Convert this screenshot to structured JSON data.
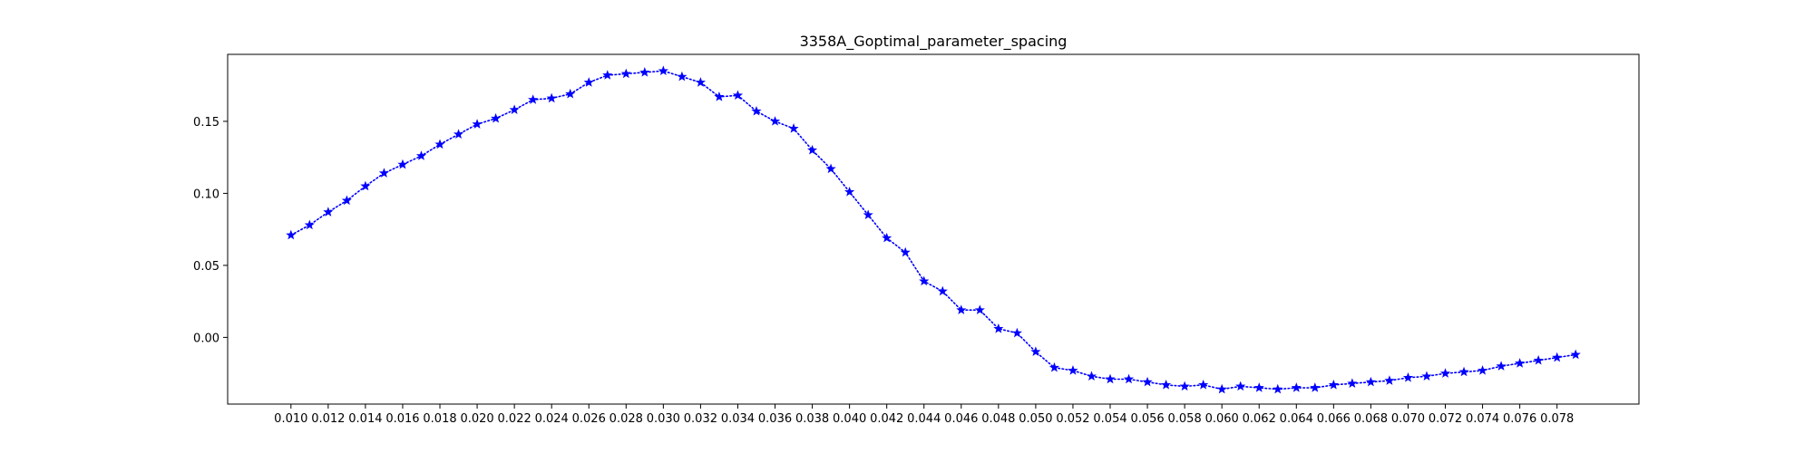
{
  "chart_data": {
    "type": "line",
    "title": "3358A_Goptimal_parameter_spacing",
    "xlabel": "",
    "ylabel": "",
    "grid": false,
    "legend": "none",
    "xlim": [
      0.0066,
      0.0824
    ],
    "ylim": [
      -0.0463,
      0.1965
    ],
    "x_ticks": [
      "0.010",
      "0.012",
      "0.014",
      "0.016",
      "0.018",
      "0.020",
      "0.022",
      "0.024",
      "0.026",
      "0.028",
      "0.030",
      "0.032",
      "0.034",
      "0.036",
      "0.038",
      "0.040",
      "0.042",
      "0.044",
      "0.046",
      "0.048",
      "0.050",
      "0.052",
      "0.054",
      "0.056",
      "0.058",
      "0.060",
      "0.062",
      "0.064",
      "0.066",
      "0.068",
      "0.070",
      "0.072",
      "0.074",
      "0.076",
      "0.078"
    ],
    "y_ticks": [
      "0.00",
      "0.05",
      "0.10",
      "0.15"
    ],
    "series": [
      {
        "color": "#0000ff",
        "line_style": "dotted",
        "marker": "star",
        "x": [
          0.01,
          0.011,
          0.012,
          0.013,
          0.014,
          0.015,
          0.016,
          0.017,
          0.018,
          0.019,
          0.02,
          0.021,
          0.022,
          0.023,
          0.024,
          0.025,
          0.026,
          0.027,
          0.028,
          0.029,
          0.03,
          0.031,
          0.032,
          0.033,
          0.034,
          0.035,
          0.036,
          0.037,
          0.038,
          0.039,
          0.04,
          0.041,
          0.042,
          0.043,
          0.044,
          0.045,
          0.046,
          0.047,
          0.048,
          0.049,
          0.05,
          0.051,
          0.052,
          0.053,
          0.054,
          0.055,
          0.056,
          0.057,
          0.058,
          0.059,
          0.06,
          0.061,
          0.062,
          0.063,
          0.064,
          0.065,
          0.066,
          0.067,
          0.068,
          0.069,
          0.07,
          0.071,
          0.072,
          0.073,
          0.074,
          0.075,
          0.076,
          0.077,
          0.078,
          0.079
        ],
        "y": [
          0.071,
          0.078,
          0.087,
          0.095,
          0.105,
          0.114,
          0.12,
          0.126,
          0.134,
          0.141,
          0.148,
          0.152,
          0.158,
          0.165,
          0.166,
          0.169,
          0.177,
          0.182,
          0.183,
          0.184,
          0.185,
          0.181,
          0.177,
          0.167,
          0.168,
          0.157,
          0.15,
          0.145,
          0.13,
          0.117,
          0.101,
          0.085,
          0.069,
          0.059,
          0.039,
          0.032,
          0.019,
          0.019,
          0.006,
          0.003,
          -0.01,
          -0.021,
          -0.023,
          -0.027,
          -0.029,
          -0.029,
          -0.031,
          -0.033,
          -0.034,
          -0.033,
          -0.036,
          -0.034,
          -0.035,
          -0.036,
          -0.035,
          -0.035,
          -0.033,
          -0.032,
          -0.031,
          -0.03,
          -0.028,
          -0.027,
          -0.025,
          -0.024,
          -0.023,
          -0.02,
          -0.018,
          -0.016,
          -0.014,
          -0.012
        ]
      }
    ]
  }
}
